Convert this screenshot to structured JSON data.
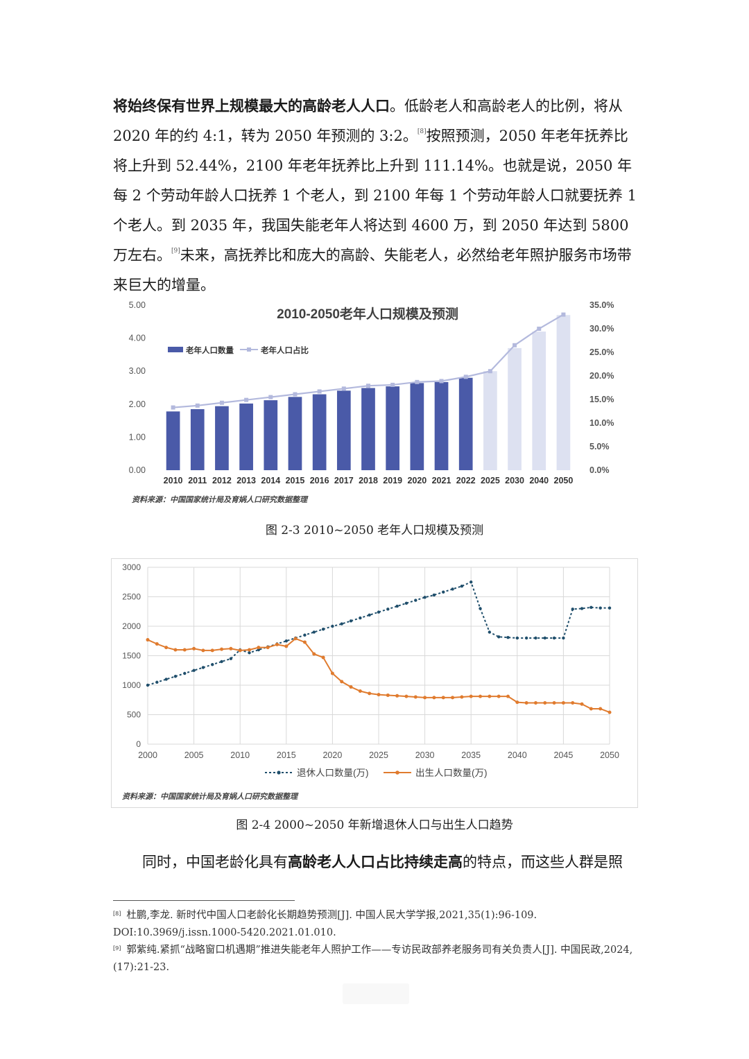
{
  "paragraph1": {
    "bold_lead": "将始终保有世界上规模最大的高龄老人人口",
    "text1": "。低龄老人和高龄老人的比例，将从 2020 年的约 4:1，转为 2050 年预测的 3:2。",
    "ref1": "[8]",
    "text2": "按照预测，2050 年老年抚养比将上升到 52.44%，2100 年老年抚养比上升到 111.14%。也就是说，2050 年每 2 个劳动年龄人口抚养 1 个老人，到 2100 年每 1 个劳动年龄人口就要抚养 1 个老人。到 2035 年，我国失能老年人将达到 4600 万，到 2050 年达到 5800 万左右。",
    "ref2": "[9]",
    "text3": "未来，高抚养比和庞大的高龄、失能老人，必然给老年照护服务市场带来巨大的增量。"
  },
  "chart_data": [
    {
      "type": "bar",
      "title": "2010-2050老年人口规模及预测",
      "categories": [
        "2010",
        "2011",
        "2012",
        "2013",
        "2014",
        "2015",
        "2016",
        "2017",
        "2018",
        "2019",
        "2020",
        "2021",
        "2022",
        "2025",
        "2030",
        "2040",
        "2050"
      ],
      "series": [
        {
          "name": "老年人口数量",
          "values": [
            1.78,
            1.85,
            1.94,
            2.02,
            2.12,
            2.22,
            2.3,
            2.41,
            2.49,
            2.54,
            2.64,
            2.67,
            2.8,
            3.0,
            3.7,
            4.2,
            4.7
          ],
          "color": "#4a5aa8",
          "forecast_color": "#dde1f1"
        },
        {
          "name": "老年人口占比",
          "values": [
            13.3,
            13.7,
            14.3,
            14.9,
            15.5,
            16.1,
            16.7,
            17.3,
            17.9,
            18.1,
            18.7,
            18.9,
            19.8,
            21.0,
            26.5,
            30.0,
            33.0
          ],
          "color": "#b3b9dd"
        }
      ],
      "forecast_from_index": 13,
      "ylim_left": [
        0,
        5.0
      ],
      "yticks_left": [
        "0.00",
        "1.00",
        "2.00",
        "3.00",
        "4.00",
        "5.00"
      ],
      "ylim_right": [
        0,
        35
      ],
      "yticks_right": [
        "0.0%",
        "5.0%",
        "10.0%",
        "15.0%",
        "20.0%",
        "25.0%",
        "30.0%",
        "35.0%"
      ],
      "legend_position": "top-left",
      "source": "资料来源：中国国家统计局及育娲人口研究数据整理"
    },
    {
      "type": "line",
      "x": [
        2000,
        2001,
        2002,
        2003,
        2004,
        2005,
        2006,
        2007,
        2008,
        2009,
        2010,
        2011,
        2012,
        2013,
        2014,
        2015,
        2016,
        2017,
        2018,
        2019,
        2020,
        2021,
        2022,
        2023,
        2024,
        2025,
        2026,
        2027,
        2028,
        2029,
        2030,
        2031,
        2032,
        2033,
        2034,
        2035,
        2036,
        2037,
        2038,
        2039,
        2040,
        2041,
        2042,
        2043,
        2044,
        2045,
        2046,
        2047,
        2048,
        2049,
        2050
      ],
      "series": [
        {
          "name": "退休人口数量(万)",
          "color": "#1f4e6b",
          "values": [
            1000,
            1050,
            1100,
            1150,
            1200,
            1250,
            1300,
            1350,
            1400,
            1450,
            1600,
            1550,
            1600,
            1650,
            1700,
            1750,
            1800,
            1850,
            1900,
            1950,
            2000,
            2040,
            2090,
            2140,
            2190,
            2240,
            2290,
            2340,
            2390,
            2440,
            2490,
            2530,
            2580,
            2630,
            2680,
            2750,
            2300,
            1900,
            1820,
            1810,
            1800,
            1800,
            1800,
            1800,
            1800,
            1800,
            2290,
            2300,
            2320,
            2310,
            2310
          ]
        },
        {
          "name": "出生人口数量(万)",
          "color": "#e07b2e",
          "values": [
            1770,
            1700,
            1640,
            1600,
            1600,
            1620,
            1590,
            1590,
            1610,
            1620,
            1590,
            1600,
            1640,
            1640,
            1690,
            1660,
            1790,
            1730,
            1530,
            1470,
            1200,
            1060,
            970,
            900,
            860,
            840,
            830,
            820,
            810,
            800,
            790,
            790,
            790,
            790,
            800,
            810,
            810,
            810,
            810,
            810,
            710,
            700,
            700,
            700,
            700,
            700,
            700,
            680,
            600,
            600,
            540
          ]
        }
      ],
      "xlim": [
        2000,
        2050
      ],
      "xticks": [
        "2000",
        "2005",
        "2010",
        "2015",
        "2020",
        "2025",
        "2030",
        "2035",
        "2040",
        "2045",
        "2050"
      ],
      "ylim": [
        0,
        3000
      ],
      "yticks": [
        "0",
        "500",
        "1000",
        "1500",
        "2000",
        "2500",
        "3000"
      ],
      "grid": true,
      "legend_position": "bottom",
      "source": "资料来源：中国国家统计局及育娲人口研究数据整理"
    }
  ],
  "captions": {
    "fig1": "图 2-3 2010~2050 老年人口规模及预测",
    "fig2": "图 2-4 2000~2050 年新增退休人口与出生人口趋势"
  },
  "paragraph2": {
    "text1": "同时，中国老龄化具有",
    "bold": "高龄老人人口占比持续走高",
    "text2": "的特点，而这些人群是照"
  },
  "footnotes": [
    {
      "ref": "[8]",
      "text": "杜鹏,李龙. 新时代中国人口老龄化长期趋势预测[J]. 中国人民大学学报,2021,35(1):96-109. DOI:10.3969/j.issn.1000-5420.2021.01.010."
    },
    {
      "ref": "[9]",
      "text": "郭紫纯.紧抓“战略窗口机遇期”推进失能老年人照护工作——专访民政部养老服务司有关负责人[J]. 中国民政,2024,(17):21-23."
    }
  ]
}
